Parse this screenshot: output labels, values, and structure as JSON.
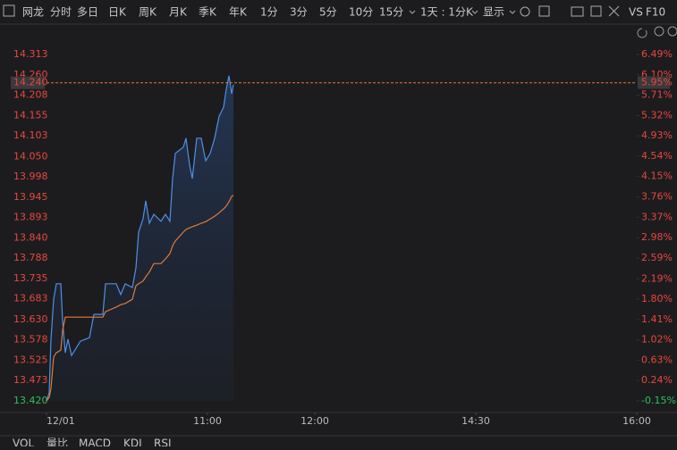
{
  "toolbar": [
    "网龙",
    "分时",
    "多日",
    "日K",
    "周K",
    "月K",
    "季K",
    "年K",
    "1分",
    "3分",
    "5分",
    "10分",
    "15分",
    "1天 : 1分K",
    "显示",
    "VS",
    "F10"
  ],
  "indicator_tabs": [
    "VOL",
    "量比",
    "MACD",
    "KDJ",
    "RSI"
  ],
  "chart_data": {
    "type": "line",
    "x": [
      0,
      1.5,
      2.5,
      4,
      5.5,
      8,
      9,
      10.5,
      12,
      14,
      19,
      24,
      26.5,
      31.5,
      33,
      39,
      41.5,
      44,
      48,
      50,
      51.5,
      54,
      55.5,
      57.5,
      60,
      64,
      66.5,
      69,
      70.5,
      72,
      76.5,
      78,
      80,
      81.5,
      84,
      86.5,
      89,
      91.5,
      94,
      96.5,
      99,
      100.5,
      102,
      103.5,
      104.5
    ],
    "series": [
      {
        "name": "price",
        "color": "#4f8fe6",
        "values": [
          13.42,
          13.441,
          13.579,
          13.682,
          13.722,
          13.722,
          13.625,
          13.544,
          13.579,
          13.537,
          13.574,
          13.583,
          13.643,
          13.643,
          13.722,
          13.722,
          13.694,
          13.722,
          13.712,
          13.763,
          13.855,
          13.89,
          13.936,
          13.878,
          13.901,
          13.883,
          13.901,
          13.883,
          13.993,
          14.058,
          14.074,
          14.097,
          14.028,
          13.993,
          14.097,
          14.097,
          14.039,
          14.058,
          14.097,
          14.154,
          14.177,
          14.223,
          14.258,
          14.212,
          14.235
        ]
      },
      {
        "name": "average",
        "color": "#e07a3a",
        "values": [
          13.42,
          13.429,
          13.452,
          13.533,
          13.544,
          13.551,
          13.602,
          13.636,
          13.636,
          13.636,
          13.636,
          13.636,
          13.636,
          13.636,
          13.65,
          13.662,
          13.668,
          13.671,
          13.682,
          13.717,
          13.722,
          13.729,
          13.74,
          13.752,
          13.774,
          13.774,
          13.786,
          13.8,
          13.82,
          13.832,
          13.855,
          13.862,
          13.866,
          13.869,
          13.873,
          13.878,
          13.882,
          13.889,
          13.896,
          13.905,
          13.915,
          13.922,
          13.933,
          13.947,
          13.95
        ]
      }
    ],
    "xlim": [
      0,
      330
    ],
    "xticks": [
      {
        "value": 0,
        "label": "12/01"
      },
      {
        "value": 90,
        "label": "11:00"
      },
      {
        "value": 150,
        "label": "12:00"
      },
      {
        "value": 240,
        "label": "14:30"
      },
      {
        "value": 330,
        "label": "16:00"
      }
    ],
    "ylim": [
      13.42,
      14.313
    ],
    "yticks": [
      {
        "value": 14.313,
        "label": "14.313"
      },
      {
        "value": 14.26,
        "label": "14.260"
      },
      {
        "value": 14.208,
        "label": "14.208"
      },
      {
        "value": 14.155,
        "label": "14.155"
      },
      {
        "value": 14.103,
        "label": "14.103"
      },
      {
        "value": 14.05,
        "label": "14.050"
      },
      {
        "value": 13.998,
        "label": "13.998"
      },
      {
        "value": 13.945,
        "label": "13.945"
      },
      {
        "value": 13.893,
        "label": "13.893"
      },
      {
        "value": 13.84,
        "label": "13.840"
      },
      {
        "value": 13.788,
        "label": "13.788"
      },
      {
        "value": 13.735,
        "label": "13.735"
      },
      {
        "value": 13.683,
        "label": "13.683"
      },
      {
        "value": 13.63,
        "label": "13.630"
      },
      {
        "value": 13.578,
        "label": "13.578"
      },
      {
        "value": 13.525,
        "label": "13.525"
      },
      {
        "value": 13.473,
        "label": "13.473"
      },
      {
        "value": 13.42,
        "label": "13.420"
      }
    ],
    "y2lim": [
      -0.15,
      6.49
    ],
    "y2ticks": [
      {
        "value": 6.49,
        "label": "6.49%"
      },
      {
        "value": 6.1,
        "label": "6.10%"
      },
      {
        "value": 5.71,
        "label": "5.71%"
      },
      {
        "value": 5.32,
        "label": "5.32%"
      },
      {
        "value": 4.93,
        "label": "4.93%"
      },
      {
        "value": 4.54,
        "label": "4.54%"
      },
      {
        "value": 4.15,
        "label": "4.15%"
      },
      {
        "value": 3.76,
        "label": "3.76%"
      },
      {
        "value": 3.37,
        "label": "3.37%"
      },
      {
        "value": 2.98,
        "label": "2.98%"
      },
      {
        "value": 2.59,
        "label": "2.59%"
      },
      {
        "value": 2.19,
        "label": "2.19%"
      },
      {
        "value": 1.8,
        "label": "1.80%"
      },
      {
        "value": 1.41,
        "label": "1.41%"
      },
      {
        "value": 1.02,
        "label": "1.02%"
      },
      {
        "value": 0.63,
        "label": "0.63%"
      },
      {
        "value": 0.24,
        "label": "0.24%"
      },
      {
        "value": -0.15,
        "label": "-0.15%"
      }
    ],
    "price_line": {
      "value": 14.24,
      "label": "14.240",
      "y2_value": 5.95,
      "y2_label": "5.95%",
      "color": "#e07a3a"
    },
    "grid": false
  }
}
